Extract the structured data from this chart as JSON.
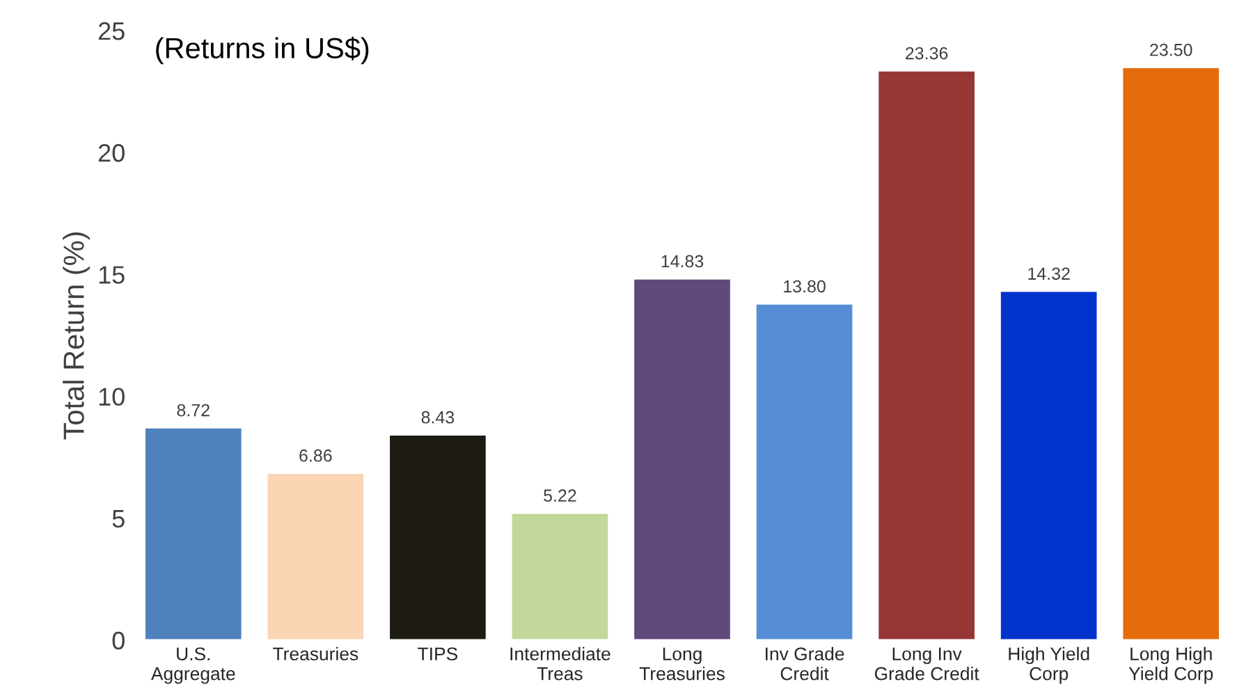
{
  "chart_data": {
    "type": "bar",
    "ylabel": "Total Return (%)",
    "annotations": [
      "(Returns in US$)"
    ],
    "categories": [
      "U.S.\nAggregate",
      "Treasuries",
      "TIPS",
      "Intermediate\nTreas",
      "Long\nTreasuries",
      "Inv Grade\nCredit",
      "Long Inv\nGrade Credit",
      "High Yield\nCorp",
      "Long High\nYield Corp"
    ],
    "values": [
      8.72,
      6.86,
      8.43,
      5.22,
      14.83,
      13.8,
      23.36,
      14.32,
      23.5
    ],
    "value_labels": [
      "8.72",
      "6.86",
      "8.43",
      "5.22",
      "14.83",
      "13.80",
      "23.36",
      "14.32",
      "23.50"
    ],
    "colors": [
      "#4f81bd",
      "#fcd5b5",
      "#1f1c14",
      "#c4d79b",
      "#604a7b",
      "#558ed5",
      "#953735",
      "#0033cc",
      "#e46c0a"
    ],
    "ylim": [
      0,
      25
    ],
    "yticks": [
      0,
      5,
      10,
      15,
      20,
      25
    ],
    "grid": false,
    "legend": false
  }
}
